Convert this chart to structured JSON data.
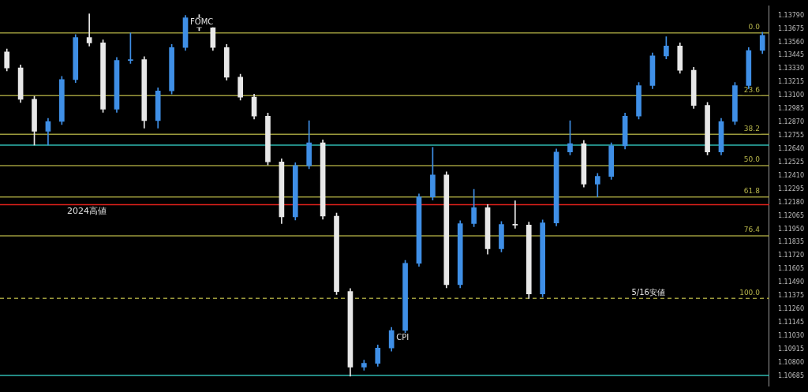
{
  "chart_data": {
    "type": "candlestick",
    "categories": [
      null,
      null,
      null,
      null,
      null,
      null,
      null,
      null,
      null,
      null,
      null,
      null,
      null,
      null,
      null,
      null,
      null,
      null,
      null,
      null,
      null,
      null,
      null,
      null,
      null,
      null,
      null,
      null,
      null,
      null,
      null,
      null,
      null,
      null,
      null,
      null,
      null,
      null,
      null,
      null,
      null,
      null,
      null,
      null,
      null,
      null,
      null,
      null,
      null,
      null,
      null,
      null,
      null,
      null,
      null,
      null
    ],
    "ohlc": [
      [
        1.13475,
        1.13501,
        1.13312,
        1.13338
      ],
      [
        1.13338,
        1.13363,
        1.13041,
        1.13068
      ],
      [
        1.13068,
        1.13094,
        1.12673,
        1.12792
      ],
      [
        1.12792,
        1.12903,
        1.12673,
        1.12877
      ],
      [
        1.12877,
        1.13265,
        1.12851,
        1.13238
      ],
      [
        1.13238,
        1.13626,
        1.13212,
        1.136
      ],
      [
        1.136,
        1.13803,
        1.13527,
        1.13554
      ],
      [
        1.13554,
        1.1358,
        1.12956,
        1.12982
      ],
      [
        1.12982,
        1.13429,
        1.12956,
        1.13403
      ],
      [
        1.13403,
        1.13639,
        1.13376,
        1.13409
      ],
      [
        1.13409,
        1.13435,
        1.12819,
        1.12884
      ],
      [
        1.12884,
        1.13166,
        1.12819,
        1.1314
      ],
      [
        1.1314,
        1.13541,
        1.13113,
        1.13514
      ],
      [
        1.13514,
        1.1379,
        1.13488,
        1.1377
      ],
      [
        1.1377,
        1.13797,
        1.13659,
        1.13685
      ],
      [
        1.13685,
        1.13711,
        1.13488,
        1.13514
      ],
      [
        1.13514,
        1.13541,
        1.13232,
        1.13258
      ],
      [
        1.13258,
        1.13284,
        1.13061,
        1.13087
      ],
      [
        1.13087,
        1.13113,
        1.12897,
        1.12923
      ],
      [
        1.12923,
        1.12949,
        1.12502,
        1.12529
      ],
      [
        1.12529,
        1.12555,
        1.11997,
        1.12056
      ],
      [
        1.12056,
        1.12522,
        1.12029,
        1.12496
      ],
      [
        1.12496,
        1.12884,
        1.1247,
        1.12693
      ],
      [
        1.12693,
        1.12719,
        1.12036,
        1.12062
      ],
      [
        1.12062,
        1.12089,
        1.11386,
        1.11412
      ],
      [
        1.11412,
        1.11438,
        1.10683,
        1.10761
      ],
      [
        1.10761,
        1.10821,
        1.10735,
        1.10794
      ],
      [
        1.10794,
        1.10952,
        1.10768,
        1.10926
      ],
      [
        1.10926,
        1.11103,
        1.10899,
        1.11077
      ],
      [
        1.11077,
        1.11681,
        1.11051,
        1.11655
      ],
      [
        1.11655,
        1.12253,
        1.11629,
        1.12227
      ],
      [
        1.12227,
        1.12654,
        1.122,
        1.12417
      ],
      [
        1.12417,
        1.12443,
        1.11445,
        1.11471
      ],
      [
        1.11471,
        1.12023,
        1.11445,
        1.11997
      ],
      [
        1.11997,
        1.12292,
        1.11971,
        1.12135
      ],
      [
        1.12135,
        1.12161,
        1.11734,
        1.1178
      ],
      [
        1.1178,
        1.12016,
        1.11753,
        1.1199
      ],
      [
        1.1199,
        1.12194,
        1.11957,
        1.11984
      ],
      [
        1.11984,
        1.1201,
        1.11353,
        1.11392
      ],
      [
        1.11392,
        1.12029,
        1.11366,
        1.12003
      ],
      [
        1.12003,
        1.1264,
        1.11978,
        1.12614
      ],
      [
        1.12614,
        1.12884,
        1.12588,
        1.12686
      ],
      [
        1.12686,
        1.12713,
        1.12312,
        1.12338
      ],
      [
        1.12338,
        1.1243,
        1.12227,
        1.12404
      ],
      [
        1.12404,
        1.12693,
        1.12378,
        1.12667
      ],
      [
        1.12667,
        1.12949,
        1.1264,
        1.12923
      ],
      [
        1.12923,
        1.13212,
        1.12897,
        1.13186
      ],
      [
        1.13186,
        1.13468,
        1.13159,
        1.13442
      ],
      [
        1.13442,
        1.13606,
        1.13416,
        1.13527
      ],
      [
        1.13527,
        1.13554,
        1.13292,
        1.13318
      ],
      [
        1.13318,
        1.13344,
        1.12989,
        1.13015
      ],
      [
        1.13015,
        1.13041,
        1.12588,
        1.12614
      ],
      [
        1.12614,
        1.12903,
        1.12588,
        1.12877
      ],
      [
        1.12877,
        1.13212,
        1.12851,
        1.13186
      ],
      [
        1.13186,
        1.13514,
        1.13159,
        1.13488
      ],
      [
        1.13488,
        1.13646,
        1.13462,
        1.13619
      ]
    ],
    "colors": [
      "#e8e8e8",
      "#e8e8e8",
      "#e8e8e8",
      "#3f8fe6",
      "#3f8fe6",
      "#3f8fe6",
      "#e8e8e8",
      "#e8e8e8",
      "#3f8fe6",
      "#3f8fe6",
      "#e8e8e8",
      "#3f8fe6",
      "#3f8fe6",
      "#3f8fe6",
      "#e8e8e8",
      "#e8e8e8",
      "#e8e8e8",
      "#e8e8e8",
      "#e8e8e8",
      "#e8e8e8",
      "#e8e8e8",
      "#3f8fe6",
      "#3f8fe6",
      "#e8e8e8",
      "#e8e8e8",
      "#e8e8e8",
      "#3f8fe6",
      "#3f8fe6",
      "#3f8fe6",
      "#3f8fe6",
      "#3f8fe6",
      "#3f8fe6",
      "#e8e8e8",
      "#3f8fe6",
      "#3f8fe6",
      "#e8e8e8",
      "#3f8fe6",
      "#e8e8e8",
      "#e8e8e8",
      "#3f8fe6",
      "#3f8fe6",
      "#3f8fe6",
      "#e8e8e8",
      "#3f8fe6",
      "#3f8fe6",
      "#3f8fe6",
      "#3f8fe6",
      "#3f8fe6",
      "#3f8fe6",
      "#e8e8e8",
      "#e8e8e8",
      "#e8e8e8",
      "#3f8fe6",
      "#3f8fe6",
      "#3f8fe6",
      "#3f8fe6"
    ],
    "ylim": [
      1.106,
      1.1387
    ],
    "yticks": [
      {
        "value": 1.1379,
        "label": "1.13790"
      },
      {
        "value": 1.13675,
        "label": "1.13675"
      },
      {
        "value": 1.1356,
        "label": "1.13560"
      },
      {
        "value": 1.13445,
        "label": "1.13445"
      },
      {
        "value": 1.1333,
        "label": "1.13330"
      },
      {
        "value": 1.13215,
        "label": "1.13215"
      },
      {
        "value": 1.131,
        "label": "1.13100"
      },
      {
        "value": 1.12985,
        "label": "1.12985"
      },
      {
        "value": 1.1287,
        "label": "1.12870"
      },
      {
        "value": 1.12755,
        "label": "1.12755"
      },
      {
        "value": 1.1264,
        "label": "1.12640"
      },
      {
        "value": 1.12525,
        "label": "1.12525"
      },
      {
        "value": 1.1241,
        "label": "1.12410"
      },
      {
        "value": 1.12295,
        "label": "1.12295"
      },
      {
        "value": 1.1218,
        "label": "1.12180"
      },
      {
        "value": 1.12065,
        "label": "1.12065"
      },
      {
        "value": 1.1195,
        "label": "1.11950"
      },
      {
        "value": 1.11835,
        "label": "1.11835"
      },
      {
        "value": 1.1172,
        "label": "1.11720"
      },
      {
        "value": 1.11605,
        "label": "1.11605"
      },
      {
        "value": 1.1149,
        "label": "1.11490"
      },
      {
        "value": 1.11375,
        "label": "1.11375"
      },
      {
        "value": 1.1126,
        "label": "1.11260"
      },
      {
        "value": 1.11145,
        "label": "1.11145"
      },
      {
        "value": 1.1103,
        "label": "1.11030"
      },
      {
        "value": 1.10915,
        "label": "1.10915"
      },
      {
        "value": 1.108,
        "label": "1.10800"
      },
      {
        "value": 1.10685,
        "label": "1.10685"
      }
    ],
    "tick_labels": "y",
    "ref_lines": [
      {
        "axis": "y",
        "value": 1.12161,
        "label": "2024高値",
        "color": "#e0201b"
      },
      {
        "axis": "y",
        "value": 1.13639,
        "color": "#9c9a3c"
      },
      {
        "axis": "y",
        "value": 1.13099,
        "color": "#9c9a3c"
      },
      {
        "axis": "y",
        "value": 1.12766,
        "color": "#9c9a3c"
      },
      {
        "axis": "y",
        "value": 1.12496,
        "color": "#9c9a3c"
      },
      {
        "axis": "y",
        "value": 1.12226,
        "color": "#9c9a3c"
      },
      {
        "axis": "y",
        "value": 1.11892,
        "color": "#9c9a3c"
      },
      {
        "axis": "y",
        "value": 1.11353,
        "color": "#9c9a3c",
        "line_style": "dashed"
      },
      {
        "axis": "y",
        "value": 1.12673,
        "color": "#2fb8b0"
      },
      {
        "axis": "y",
        "value": 1.10689,
        "color": "#2fb8b0"
      }
    ],
    "annotations": [
      {
        "text": "FOMC",
        "y": 1.1379
      },
      {
        "text": "CPI",
        "y": 1.11077
      },
      {
        "text": "0.0",
        "y": 1.13639
      },
      {
        "text": "23.6",
        "y": 1.13099
      },
      {
        "text": "38.2",
        "y": 1.12766
      },
      {
        "text": "50.0",
        "y": 1.12496
      },
      {
        "text": "61.8",
        "y": 1.12226
      },
      {
        "text": "76.4",
        "y": 1.11892
      },
      {
        "text": "100.0",
        "y": 1.11353
      },
      {
        "text": "5/16安値",
        "y": 1.11353
      }
    ]
  }
}
